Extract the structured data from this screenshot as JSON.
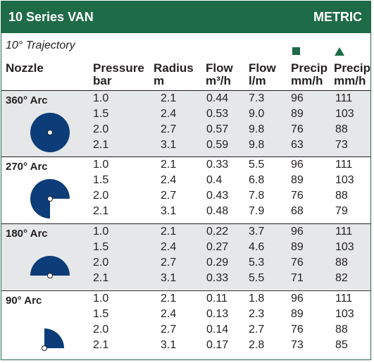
{
  "header": {
    "title": "10 Series VAN",
    "units": "METRIC"
  },
  "trajectory": "10° Trajectory",
  "colors": {
    "brand_green": "#1e6b47",
    "nozzle_blue": "#0c3d78",
    "row_shade": "#e6e7e8"
  },
  "symbols": {
    "square": "square-icon",
    "triangle": "triangle-icon"
  },
  "columns": {
    "nozzle": "Nozzle",
    "pressure": [
      "Pressure",
      "bar"
    ],
    "radius": [
      "Radius",
      "m"
    ],
    "flow_m3h": [
      "Flow",
      "m³/h"
    ],
    "flow_lm": [
      "Flow",
      "l/m"
    ],
    "precip_sq": [
      "Precip",
      "mm/h"
    ],
    "precip_tri": [
      "Precip",
      "mm/h"
    ]
  },
  "sections": [
    {
      "arc": "360° Arc",
      "icon": "full-circle-nozzle-icon",
      "rows": [
        [
          "1.0",
          "2.1",
          "0.44",
          "7.3",
          "96",
          "111"
        ],
        [
          "1.5",
          "2.4",
          "0.53",
          "9.0",
          "89",
          "103"
        ],
        [
          "2.0",
          "2.7",
          "0.57",
          "9.8",
          "76",
          "88"
        ],
        [
          "2.1",
          "3.1",
          "0.59",
          "9.8",
          "63",
          "73"
        ]
      ]
    },
    {
      "arc": "270° Arc",
      "icon": "three-quarter-circle-nozzle-icon",
      "rows": [
        [
          "1.0",
          "2.1",
          "0.33",
          "5.5",
          "96",
          "111"
        ],
        [
          "1.5",
          "2.4",
          "0.4",
          "6.8",
          "89",
          "103"
        ],
        [
          "2.0",
          "2.7",
          "0.43",
          "7.8",
          "76",
          "88"
        ],
        [
          "2.1",
          "3.1",
          "0.48",
          "7.9",
          "68",
          "79"
        ]
      ]
    },
    {
      "arc": "180° Arc",
      "icon": "half-circle-nozzle-icon",
      "rows": [
        [
          "1.0",
          "2.1",
          "0.22",
          "3.7",
          "96",
          "111"
        ],
        [
          "1.5",
          "2.4",
          "0.27",
          "4.6",
          "89",
          "103"
        ],
        [
          "2.0",
          "2.7",
          "0.29",
          "5.3",
          "76",
          "88"
        ],
        [
          "2.1",
          "3.1",
          "0.33",
          "5.5",
          "71",
          "82"
        ]
      ]
    },
    {
      "arc": "90° Arc",
      "icon": "quarter-circle-nozzle-icon",
      "rows": [
        [
          "1.0",
          "2.1",
          "0.11",
          "1.8",
          "96",
          "111"
        ],
        [
          "1.5",
          "2.4",
          "0.13",
          "2.3",
          "89",
          "103"
        ],
        [
          "2.0",
          "2.7",
          "0.14",
          "2.7",
          "76",
          "88"
        ],
        [
          "2.1",
          "3.1",
          "0.17",
          "2.8",
          "73",
          "85"
        ]
      ]
    }
  ]
}
